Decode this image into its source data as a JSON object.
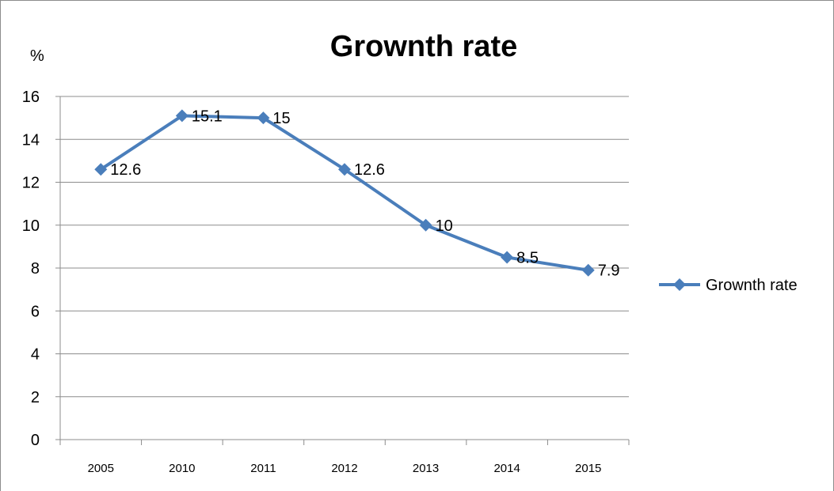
{
  "chart_data": {
    "type": "line",
    "title": "Grownth rate",
    "ylabel": "%",
    "categories": [
      "2005",
      "2010",
      "2011",
      "2012",
      "2013",
      "2014",
      "2015"
    ],
    "series": [
      {
        "name": "Grownth rate",
        "values": [
          12.6,
          15.1,
          15,
          12.6,
          10,
          8.5,
          7.9
        ]
      }
    ],
    "ylim": [
      0,
      16
    ],
    "yticks": [
      0,
      2,
      4,
      6,
      8,
      10,
      12,
      14,
      16
    ],
    "grid": true,
    "legend_position": "right",
    "line_color": "#4a7ebb",
    "marker": "diamond"
  }
}
